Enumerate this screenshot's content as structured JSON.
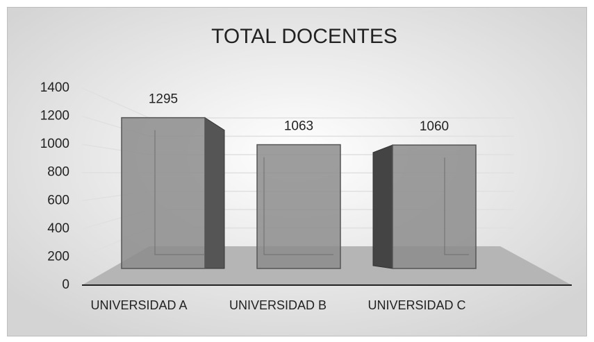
{
  "chart_data": {
    "type": "bar3d",
    "title": "TOTAL DOCENTES",
    "categories": [
      "UNIVERSIDAD A",
      "UNIVERSIDAD B",
      "UNIVERSIDAD C"
    ],
    "values": [
      1295,
      1063,
      1060
    ],
    "color": "#8c8c8c",
    "ylim": [
      0,
      1400
    ],
    "yticks": [
      0,
      200,
      400,
      600,
      800,
      1000,
      1200,
      1400
    ],
    "grid": true
  }
}
